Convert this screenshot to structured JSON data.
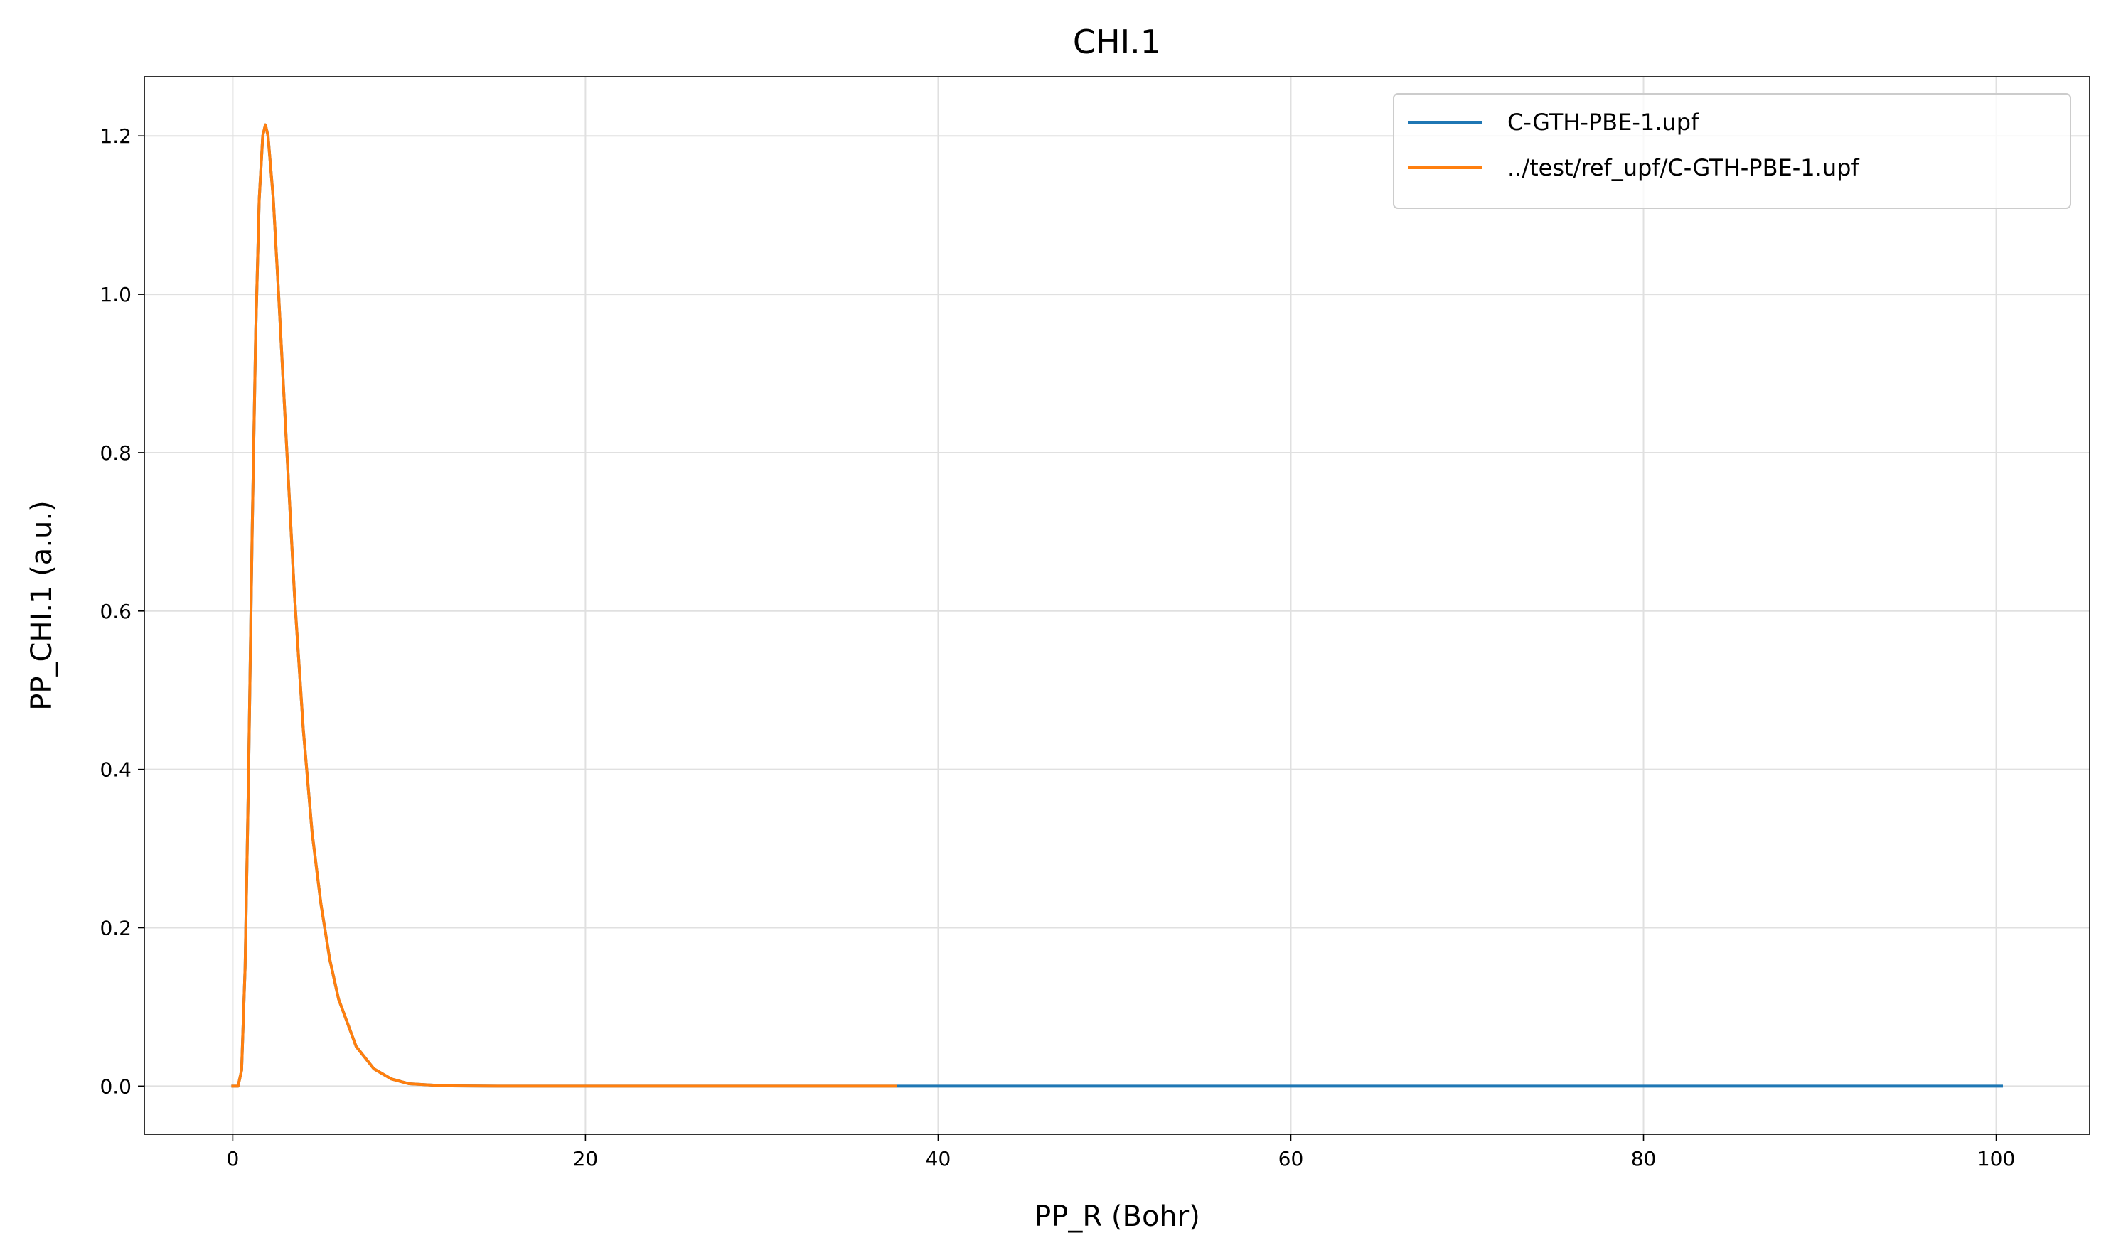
{
  "chart_data": {
    "type": "line",
    "title": "CHI.1",
    "x_label": "PP_R (Bohr)",
    "y_label": "PP_CHI.1 (a.u.)",
    "xlim": [
      -5.015,
      105.3
    ],
    "ylim": [
      -0.0607,
      1.2747
    ],
    "xticks": [
      0,
      20,
      40,
      60,
      80,
      100
    ],
    "yticks": [
      {
        "value": 0,
        "label": "0.0"
      },
      0.2,
      0.4,
      0.6,
      0.8,
      {
        "value": 1,
        "label": "1.0"
      },
      1.2
    ],
    "grid": true,
    "legend": "upper right",
    "series": [
      {
        "name": "C-GTH-PBE-1.upf",
        "color": "#1f77b4",
        "x": [
          0,
          0.3,
          0.5,
          0.7,
          0.9,
          1.1,
          1.3,
          1.5,
          1.7,
          1.85,
          2.0,
          2.3,
          2.6,
          3.0,
          3.5,
          4.0,
          4.5,
          5.0,
          5.5,
          6.0,
          7.0,
          8.0,
          9.0,
          10,
          12,
          15,
          20,
          30,
          37.6,
          60,
          80,
          100.3
        ],
        "values": [
          0,
          0,
          0.02,
          0.15,
          0.4,
          0.7,
          0.95,
          1.12,
          1.2,
          1.214,
          1.2,
          1.12,
          1.0,
          0.83,
          0.62,
          0.45,
          0.32,
          0.23,
          0.16,
          0.11,
          0.05,
          0.022,
          0.009,
          0.003,
          0.0004,
          0,
          0,
          0,
          0,
          0,
          0,
          0
        ]
      },
      {
        "name": "../test/ref_upf/C-GTH-PBE-1.upf",
        "color": "#ff7f0e",
        "x": [
          0,
          0.3,
          0.5,
          0.7,
          0.9,
          1.1,
          1.3,
          1.5,
          1.7,
          1.85,
          2.0,
          2.3,
          2.6,
          3.0,
          3.5,
          4.0,
          4.5,
          5.0,
          5.5,
          6.0,
          7.0,
          8.0,
          9.0,
          10,
          12,
          15,
          20,
          30,
          37.6
        ],
        "values": [
          0,
          0,
          0.02,
          0.15,
          0.4,
          0.7,
          0.95,
          1.12,
          1.2,
          1.214,
          1.2,
          1.12,
          1.0,
          0.83,
          0.62,
          0.45,
          0.32,
          0.23,
          0.16,
          0.11,
          0.05,
          0.022,
          0.009,
          0.003,
          0.0004,
          0,
          0,
          0,
          0
        ]
      }
    ]
  }
}
